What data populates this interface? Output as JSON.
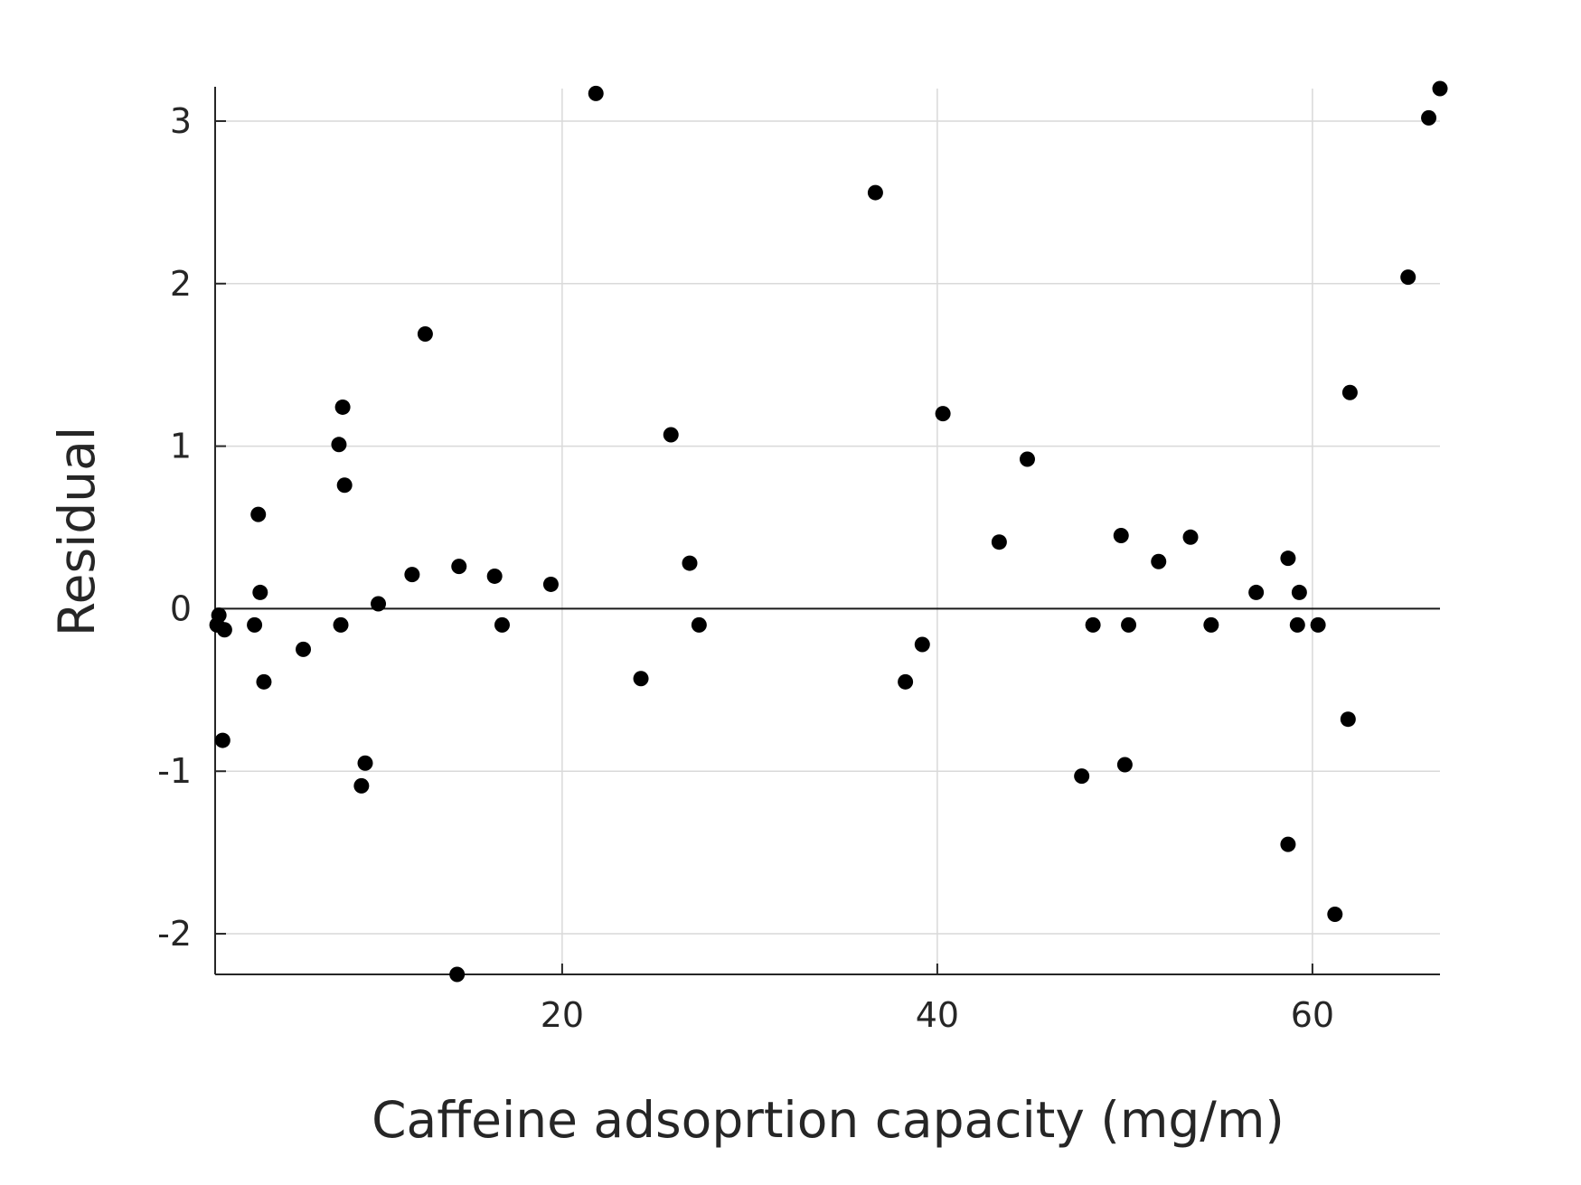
{
  "chart_data": {
    "type": "scatter",
    "title": "",
    "xlabel": "Caffeine adsoprtion capacity (mg/m)",
    "ylabel": "Residual",
    "xlim": [
      1.5,
      66.8
    ],
    "ylim": [
      -2.25,
      3.2
    ],
    "xticks": [
      20,
      40,
      60
    ],
    "xtick_labels": [
      "20",
      "40",
      "60"
    ],
    "yticks": [
      -2,
      -1,
      0,
      1,
      2,
      3
    ],
    "ytick_labels": [
      "-2",
      "-1",
      "0",
      "1",
      "2",
      "3"
    ],
    "grid": true,
    "reference_line_y": 0,
    "marker_color": "#000000",
    "series": [
      {
        "points": [
          [
            1.6,
            -0.1
          ],
          [
            1.7,
            -0.04
          ],
          [
            1.9,
            -0.81
          ],
          [
            2.0,
            -0.13
          ],
          [
            3.6,
            -0.1
          ],
          [
            3.8,
            0.58
          ],
          [
            3.9,
            0.1
          ],
          [
            4.1,
            -0.45
          ],
          [
            6.2,
            -0.25
          ],
          [
            8.1,
            1.01
          ],
          [
            8.2,
            -0.1
          ],
          [
            8.3,
            1.24
          ],
          [
            8.4,
            0.76
          ],
          [
            9.3,
            -1.09
          ],
          [
            9.5,
            -0.95
          ],
          [
            10.2,
            0.03
          ],
          [
            12.0,
            0.21
          ],
          [
            12.7,
            1.69
          ],
          [
            14.4,
            -2.25
          ],
          [
            14.5,
            0.26
          ],
          [
            16.4,
            0.2
          ],
          [
            16.8,
            -0.1
          ],
          [
            19.4,
            0.15
          ],
          [
            21.8,
            3.17
          ],
          [
            24.2,
            -0.43
          ],
          [
            25.8,
            1.07
          ],
          [
            26.8,
            0.28
          ],
          [
            27.3,
            -0.1
          ],
          [
            36.7,
            2.56
          ],
          [
            38.3,
            -0.45
          ],
          [
            39.2,
            -0.22
          ],
          [
            40.3,
            1.2
          ],
          [
            43.3,
            0.41
          ],
          [
            44.8,
            0.92
          ],
          [
            47.7,
            -1.03
          ],
          [
            48.3,
            -0.1
          ],
          [
            49.8,
            0.45
          ],
          [
            50.0,
            -0.96
          ],
          [
            50.2,
            -0.1
          ],
          [
            51.8,
            0.29
          ],
          [
            53.5,
            0.44
          ],
          [
            54.6,
            -0.1
          ],
          [
            57.0,
            0.1
          ],
          [
            58.7,
            -1.45
          ],
          [
            58.7,
            0.31
          ],
          [
            59.2,
            -0.1
          ],
          [
            59.3,
            0.1
          ],
          [
            60.3,
            -0.1
          ],
          [
            61.2,
            -1.88
          ],
          [
            61.9,
            -0.68
          ],
          [
            62.0,
            1.33
          ],
          [
            65.1,
            2.04
          ],
          [
            66.2,
            3.02
          ],
          [
            66.8,
            3.2
          ]
        ]
      }
    ]
  }
}
